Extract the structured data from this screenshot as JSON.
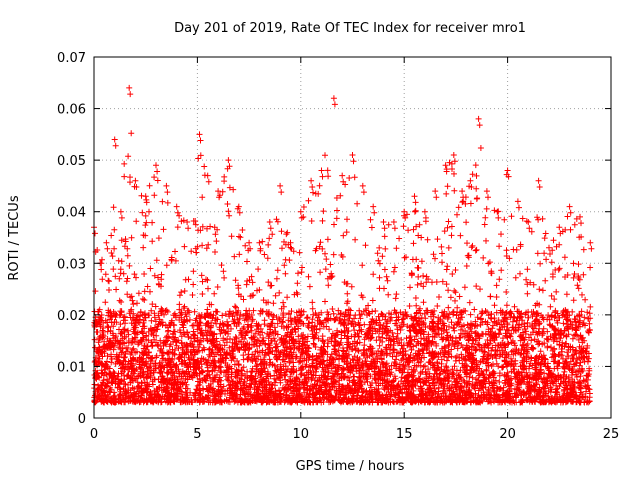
{
  "chart_data": {
    "type": "scatter",
    "title": "Day 201 of 2019, Rate Of TEC Index for receiver mro1",
    "xlabel": "GPS time / hours",
    "ylabel": "ROTI / TECUs",
    "xlim": [
      0,
      25
    ],
    "ylim": [
      0,
      0.07
    ],
    "xticks": [
      0,
      5,
      10,
      15,
      20,
      25
    ],
    "yticks": [
      0,
      0.01,
      0.02,
      0.03,
      0.04,
      0.05,
      0.06,
      0.07
    ],
    "xtick_labels": [
      "0",
      "5",
      "10",
      "15",
      "20",
      "25"
    ],
    "ytick_labels": [
      "0",
      "0.01",
      "0.02",
      "0.03",
      "0.04",
      "0.05",
      "0.06",
      "0.07"
    ],
    "grid": true,
    "marker": "+",
    "color": "#ff0000",
    "data_range_hours": [
      0,
      24
    ],
    "series": [
      {
        "name": "ROTI",
        "points_note": "dense cloud, baseline ~0.005-0.02 TECU, upper bound shown by envelope",
        "envelope": [
          {
            "x": 0.0,
            "y": 0.037
          },
          {
            "x": 0.3,
            "y": 0.03
          },
          {
            "x": 0.6,
            "y": 0.034
          },
          {
            "x": 1.0,
            "y": 0.054
          },
          {
            "x": 1.3,
            "y": 0.04
          },
          {
            "x": 1.7,
            "y": 0.064
          },
          {
            "x": 2.0,
            "y": 0.046
          },
          {
            "x": 2.5,
            "y": 0.043
          },
          {
            "x": 3.0,
            "y": 0.049
          },
          {
            "x": 3.5,
            "y": 0.045
          },
          {
            "x": 4.0,
            "y": 0.041
          },
          {
            "x": 4.5,
            "y": 0.038
          },
          {
            "x": 5.1,
            "y": 0.055
          },
          {
            "x": 5.5,
            "y": 0.047
          },
          {
            "x": 6.0,
            "y": 0.044
          },
          {
            "x": 6.5,
            "y": 0.05
          },
          {
            "x": 7.0,
            "y": 0.041
          },
          {
            "x": 7.5,
            "y": 0.034
          },
          {
            "x": 8.0,
            "y": 0.034
          },
          {
            "x": 8.5,
            "y": 0.038
          },
          {
            "x": 9.0,
            "y": 0.045
          },
          {
            "x": 9.5,
            "y": 0.034
          },
          {
            "x": 10.0,
            "y": 0.04
          },
          {
            "x": 10.5,
            "y": 0.046
          },
          {
            "x": 11.0,
            "y": 0.048
          },
          {
            "x": 11.6,
            "y": 0.062
          },
          {
            "x": 12.0,
            "y": 0.047
          },
          {
            "x": 12.5,
            "y": 0.051
          },
          {
            "x": 13.0,
            "y": 0.045
          },
          {
            "x": 13.5,
            "y": 0.041
          },
          {
            "x": 14.0,
            "y": 0.038
          },
          {
            "x": 14.5,
            "y": 0.038
          },
          {
            "x": 15.0,
            "y": 0.04
          },
          {
            "x": 15.5,
            "y": 0.043
          },
          {
            "x": 16.0,
            "y": 0.04
          },
          {
            "x": 16.5,
            "y": 0.044
          },
          {
            "x": 17.0,
            "y": 0.049
          },
          {
            "x": 17.4,
            "y": 0.051
          },
          {
            "x": 17.8,
            "y": 0.044
          },
          {
            "x": 18.2,
            "y": 0.046
          },
          {
            "x": 18.6,
            "y": 0.058
          },
          {
            "x": 19.0,
            "y": 0.044
          },
          {
            "x": 19.5,
            "y": 0.04
          },
          {
            "x": 20.0,
            "y": 0.048
          },
          {
            "x": 20.5,
            "y": 0.042
          },
          {
            "x": 21.0,
            "y": 0.038
          },
          {
            "x": 21.5,
            "y": 0.046
          },
          {
            "x": 22.0,
            "y": 0.033
          },
          {
            "x": 22.5,
            "y": 0.037
          },
          {
            "x": 23.0,
            "y": 0.041
          },
          {
            "x": 23.5,
            "y": 0.039
          },
          {
            "x": 24.0,
            "y": 0.034
          }
        ],
        "baseline_low": 0.003,
        "baseline_high": 0.02
      }
    ]
  }
}
